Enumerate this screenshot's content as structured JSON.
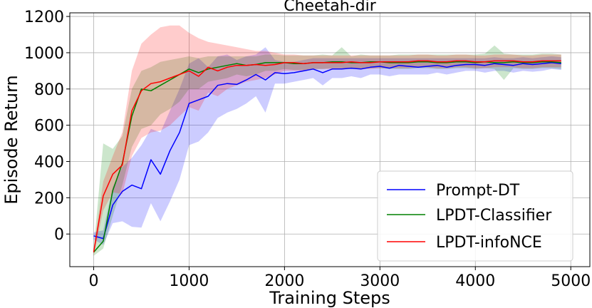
{
  "chart_data": {
    "type": "line",
    "title": "Cheetah-dir",
    "xlabel": "Training Steps",
    "ylabel": "Episode Return",
    "xlim": [
      -250,
      5200
    ],
    "ylim": [
      -180,
      1220
    ],
    "xticks": [
      0,
      1000,
      2000,
      3000,
      4000,
      5000
    ],
    "yticks": [
      0,
      200,
      400,
      600,
      800,
      1000,
      1200
    ],
    "grid": true,
    "legend_position": "bottom-right",
    "x": [
      0,
      100,
      200,
      300,
      400,
      500,
      600,
      700,
      800,
      900,
      1000,
      1100,
      1200,
      1300,
      1400,
      1500,
      1600,
      1700,
      1800,
      1900,
      2000,
      2100,
      2200,
      2300,
      2400,
      2500,
      2600,
      2700,
      2800,
      2900,
      3000,
      3100,
      3200,
      3300,
      3400,
      3500,
      3600,
      3700,
      3800,
      3900,
      4000,
      4100,
      4200,
      4300,
      4400,
      4500,
      4600,
      4700,
      4800,
      4900
    ],
    "series": [
      {
        "name": "Prompt-DT",
        "color": "#0000ff",
        "mean": [
          -10,
          -25,
          160,
          235,
          270,
          250,
          410,
          330,
          460,
          560,
          720,
          740,
          760,
          820,
          830,
          825,
          850,
          880,
          850,
          890,
          885,
          890,
          900,
          910,
          890,
          910,
          910,
          915,
          910,
          920,
          925,
          915,
          930,
          925,
          920,
          925,
          930,
          920,
          930,
          935,
          935,
          930,
          940,
          935,
          930,
          940,
          935,
          940,
          945,
          940
        ],
        "lower": [
          -30,
          -60,
          60,
          70,
          40,
          35,
          170,
          70,
          180,
          300,
          490,
          510,
          560,
          640,
          670,
          690,
          720,
          760,
          670,
          830,
          830,
          840,
          850,
          860,
          820,
          860,
          860,
          870,
          860,
          880,
          880,
          870,
          880,
          880,
          880,
          880,
          890,
          880,
          890,
          900,
          900,
          890,
          900,
          900,
          890,
          900,
          895,
          900,
          910,
          905
        ],
        "upper": [
          10,
          20,
          260,
          370,
          420,
          490,
          580,
          560,
          680,
          800,
          940,
          970,
          920,
          980,
          990,
          960,
          980,
          990,
          1030,
          960,
          950,
          950,
          960,
          970,
          970,
          970,
          970,
          970,
          970,
          970,
          970,
          970,
          970,
          970,
          970,
          970,
          970,
          970,
          970,
          970,
          970,
          970,
          975,
          970,
          970,
          975,
          970,
          975,
          980,
          975
        ]
      },
      {
        "name": "LPDT-Classifier",
        "color": "#008000",
        "mean": [
          -100,
          -40,
          240,
          390,
          650,
          800,
          790,
          820,
          850,
          880,
          910,
          890,
          910,
          920,
          930,
          940,
          930,
          935,
          945,
          945,
          945,
          940,
          940,
          945,
          945,
          950,
          950,
          945,
          945,
          950,
          950,
          945,
          945,
          945,
          950,
          950,
          945,
          945,
          950,
          950,
          945,
          950,
          945,
          945,
          950,
          945,
          945,
          950,
          950,
          945
        ],
        "lower": [
          -120,
          -80,
          100,
          270,
          480,
          580,
          600,
          660,
          690,
          730,
          800,
          800,
          840,
          850,
          860,
          880,
          870,
          880,
          900,
          900,
          910,
          905,
          905,
          910,
          910,
          915,
          915,
          910,
          910,
          915,
          915,
          910,
          910,
          910,
          915,
          915,
          910,
          910,
          915,
          915,
          910,
          915,
          910,
          850,
          915,
          910,
          910,
          915,
          915,
          910
        ],
        "upper": [
          -80,
          500,
          470,
          540,
          800,
          900,
          920,
          950,
          960,
          970,
          980,
          970,
          980,
          980,
          980,
          980,
          980,
          980,
          990,
          990,
          985,
          985,
          985,
          985,
          990,
          985,
          1030,
          980,
          990,
          985,
          985,
          985,
          990,
          990,
          990,
          990,
          990,
          990,
          990,
          990,
          990,
          995,
          1040,
          995,
          990,
          990,
          990,
          995,
          995,
          990
        ]
      },
      {
        "name": "LPDT-infoNCE",
        "color": "#ff0000",
        "mean": [
          -100,
          210,
          330,
          380,
          680,
          790,
          830,
          840,
          860,
          880,
          900,
          870,
          920,
          900,
          920,
          930,
          930,
          935,
          930,
          935,
          945,
          945,
          940,
          945,
          945,
          945,
          945,
          950,
          945,
          945,
          950,
          950,
          950,
          950,
          955,
          955,
          950,
          950,
          955,
          955,
          950,
          950,
          955,
          955,
          955,
          950,
          950,
          955,
          955,
          955
        ],
        "lower": [
          -120,
          130,
          230,
          220,
          430,
          530,
          560,
          570,
          600,
          650,
          700,
          680,
          780,
          760,
          800,
          820,
          840,
          850,
          860,
          880,
          900,
          900,
          900,
          910,
          910,
          910,
          910,
          915,
          910,
          910,
          915,
          915,
          915,
          915,
          920,
          920,
          915,
          915,
          920,
          920,
          915,
          915,
          920,
          920,
          920,
          915,
          915,
          920,
          920,
          920
        ],
        "upper": [
          -80,
          290,
          430,
          560,
          900,
          1050,
          1100,
          1140,
          1150,
          1150,
          1110,
          1080,
          1060,
          1050,
          1040,
          1030,
          1020,
          1010,
          1010,
          1000,
          990,
          990,
          985,
          985,
          985,
          985,
          985,
          985,
          985,
          985,
          985,
          985,
          985,
          985,
          990,
          990,
          985,
          985,
          990,
          990,
          985,
          985,
          990,
          990,
          990,
          985,
          985,
          990,
          990,
          990
        ]
      }
    ]
  }
}
